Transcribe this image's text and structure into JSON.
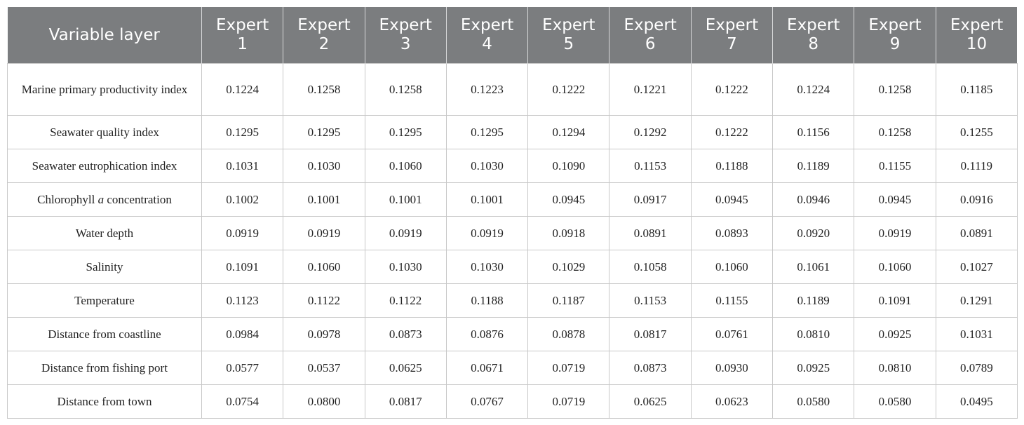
{
  "table": {
    "headers": [
      {
        "line1": "Variable layer",
        "line2": ""
      },
      {
        "line1": "Expert",
        "line2": "1"
      },
      {
        "line1": "Expert",
        "line2": "2"
      },
      {
        "line1": "Expert",
        "line2": "3"
      },
      {
        "line1": "Expert",
        "line2": "4"
      },
      {
        "line1": "Expert",
        "line2": "5"
      },
      {
        "line1": "Expert",
        "line2": "6"
      },
      {
        "line1": "Expert",
        "line2": "7"
      },
      {
        "line1": "Expert",
        "line2": "8"
      },
      {
        "line1": "Expert",
        "line2": "9"
      },
      {
        "line1": "Expert",
        "line2": "10"
      }
    ],
    "rows": [
      {
        "label": "Marine primary productivity index",
        "values": [
          "0.1224",
          "0.1258",
          "0.1258",
          "0.1223",
          "0.1222",
          "0.1221",
          "0.1222",
          "0.1224",
          "0.1258",
          "0.1185"
        ]
      },
      {
        "label": "Seawater quality index",
        "values": [
          "0.1295",
          "0.1295",
          "0.1295",
          "0.1295",
          "0.1294",
          "0.1292",
          "0.1222",
          "0.1156",
          "0.1258",
          "0.1255"
        ]
      },
      {
        "label": "Seawater eutrophication index",
        "values": [
          "0.1031",
          "0.1030",
          "0.1060",
          "0.1030",
          "0.1090",
          "0.1153",
          "0.1188",
          "0.1189",
          "0.1155",
          "0.1119"
        ]
      },
      {
        "label_pre": "Chlorophyll ",
        "label_em": "a",
        "label_post": " concentration",
        "values": [
          "0.1002",
          "0.1001",
          "0.1001",
          "0.1001",
          "0.0945",
          "0.0917",
          "0.0945",
          "0.0946",
          "0.0945",
          "0.0916"
        ]
      },
      {
        "label": "Water depth",
        "values": [
          "0.0919",
          "0.0919",
          "0.0919",
          "0.0919",
          "0.0918",
          "0.0891",
          "0.0893",
          "0.0920",
          "0.0919",
          "0.0891"
        ]
      },
      {
        "label": "Salinity",
        "values": [
          "0.1091",
          "0.1060",
          "0.1030",
          "0.1030",
          "0.1029",
          "0.1058",
          "0.1060",
          "0.1061",
          "0.1060",
          "0.1027"
        ]
      },
      {
        "label": "Temperature",
        "values": [
          "0.1123",
          "0.1122",
          "0.1122",
          "0.1188",
          "0.1187",
          "0.1153",
          "0.1155",
          "0.1189",
          "0.1091",
          "0.1291"
        ]
      },
      {
        "label": "Distance from coastline",
        "values": [
          "0.0984",
          "0.0978",
          "0.0873",
          "0.0876",
          "0.0878",
          "0.0817",
          "0.0761",
          "0.0810",
          "0.0925",
          "0.1031"
        ]
      },
      {
        "label": "Distance from fishing port",
        "values": [
          "0.0577",
          "0.0537",
          "0.0625",
          "0.0671",
          "0.0719",
          "0.0873",
          "0.0930",
          "0.0925",
          "0.0810",
          "0.0789"
        ]
      },
      {
        "label": "Distance from town",
        "values": [
          "0.0754",
          "0.0800",
          "0.0817",
          "0.0767",
          "0.0719",
          "0.0625",
          "0.0623",
          "0.0580",
          "0.0580",
          "0.0495"
        ]
      }
    ]
  },
  "colors": {
    "header_bg": "#7b7d7f",
    "header_text": "#ffffff",
    "grid": "#c8c8c8"
  }
}
